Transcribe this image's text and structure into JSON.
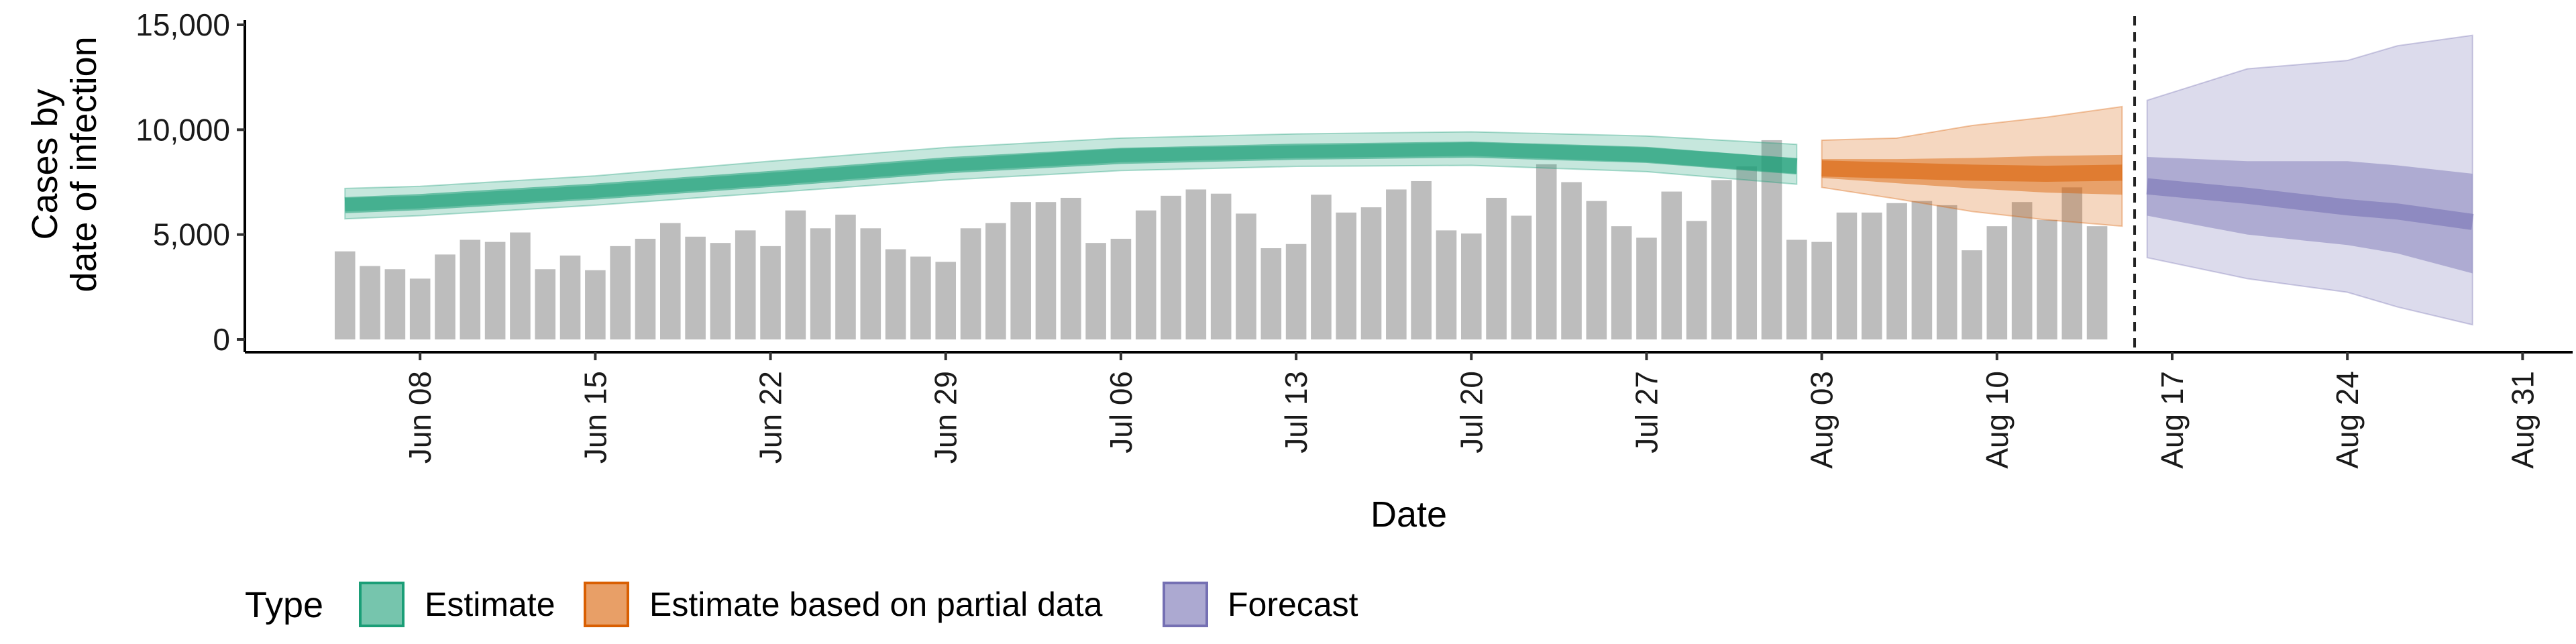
{
  "chart_data": {
    "type": "bar",
    "xlabel": "Date",
    "ylabel_line1": "Cases by",
    "ylabel_line2": "date of infection",
    "ylim": [
      0,
      15000
    ],
    "yticks": [
      0,
      5000,
      10000,
      15000
    ],
    "ytick_labels": [
      "0",
      "5,000",
      "10,000",
      "15,000"
    ],
    "xlim": [
      "2020-06-01",
      "2020-09-02"
    ],
    "xticks": [
      "2020-06-08",
      "2020-06-15",
      "2020-06-22",
      "2020-06-29",
      "2020-07-06",
      "2020-07-13",
      "2020-07-20",
      "2020-07-27",
      "2020-08-03",
      "2020-08-10",
      "2020-08-17",
      "2020-08-24",
      "2020-08-31"
    ],
    "xtick_labels": [
      "Jun 08",
      "Jun 15",
      "Jun 22",
      "Jun 29",
      "Jul 06",
      "Jul 13",
      "Jul 20",
      "Jul 27",
      "Aug 03",
      "Aug 10",
      "Aug 17",
      "Aug 24",
      "Aug 31"
    ],
    "vline_date": "2020-08-15",
    "observed_cases": {
      "start_date": "2020-06-05",
      "values": [
        4200,
        3500,
        3350,
        2900,
        4050,
        4750,
        4650,
        5100,
        3350,
        4000,
        3300,
        4450,
        4800,
        5550,
        4900,
        4600,
        5200,
        4450,
        6150,
        5300,
        5950,
        5300,
        4300,
        3950,
        3700,
        5300,
        5550,
        6550,
        6550,
        6750,
        4600,
        4800,
        6150,
        6850,
        7150,
        6950,
        6000,
        4350,
        4550,
        6900,
        6050,
        6300,
        7150,
        7550,
        5200,
        5050,
        6750,
        5900,
        8350,
        7500,
        6600,
        5400,
        4850,
        7050,
        5650,
        7600,
        8250,
        9500,
        4750,
        4650,
        6050,
        6050,
        6500,
        6600,
        6400,
        4250,
        5400,
        6550,
        5700,
        7250,
        5400
      ]
    },
    "series": [
      {
        "name": "Estimate",
        "color": "#1b9e77",
        "dates": [
          "2020-06-05",
          "2020-06-08",
          "2020-06-15",
          "2020-06-22",
          "2020-06-29",
          "2020-07-06",
          "2020-07-13",
          "2020-07-20",
          "2020-07-27",
          "2020-08-02"
        ],
        "median": [
          6400,
          6550,
          7050,
          7650,
          8300,
          8750,
          8950,
          9050,
          8800,
          8250
        ],
        "lower_50": [
          6100,
          6250,
          6750,
          7350,
          8000,
          8450,
          8650,
          8750,
          8450,
          7900
        ],
        "upper_50": [
          6750,
          6850,
          7350,
          7950,
          8600,
          9100,
          9250,
          9400,
          9150,
          8650
        ],
        "lower_90": [
          5750,
          5900,
          6400,
          7000,
          7600,
          8050,
          8250,
          8300,
          8000,
          7400
        ],
        "upper_90": [
          7200,
          7300,
          7800,
          8500,
          9150,
          9600,
          9800,
          9900,
          9700,
          9300
        ]
      },
      {
        "name": "Estimate based on partial data",
        "color": "#d95f02",
        "dates": [
          "2020-08-03",
          "2020-08-06",
          "2020-08-09",
          "2020-08-12",
          "2020-08-15"
        ],
        "median": [
          8150,
          8050,
          7950,
          7900,
          7950
        ],
        "lower_50": [
          7700,
          7450,
          7200,
          7000,
          6900
        ],
        "upper_50": [
          8600,
          8600,
          8650,
          8750,
          8800
        ],
        "lower_90": [
          7250,
          6700,
          6100,
          5700,
          5400
        ],
        "upper_90": [
          9500,
          9600,
          10200,
          10600,
          11100
        ]
      },
      {
        "name": "Forecast",
        "color": "#7570b3",
        "dates": [
          "2020-08-16",
          "2020-08-20",
          "2020-08-24",
          "2020-08-26",
          "2020-08-29"
        ],
        "median": [
          7300,
          6850,
          6300,
          6100,
          5600
        ],
        "lower_50": [
          5900,
          5000,
          4500,
          4100,
          3150
        ],
        "upper_50": [
          8700,
          8500,
          8500,
          8300,
          7900
        ],
        "lower_90": [
          3900,
          2900,
          2250,
          1550,
          700
        ],
        "upper_90": [
          11400,
          12900,
          13300,
          14000,
          14500
        ]
      }
    ],
    "legend": {
      "title": "Type",
      "position": "bottom",
      "items": [
        "Estimate",
        "Estimate based on partial data",
        "Forecast"
      ]
    }
  }
}
